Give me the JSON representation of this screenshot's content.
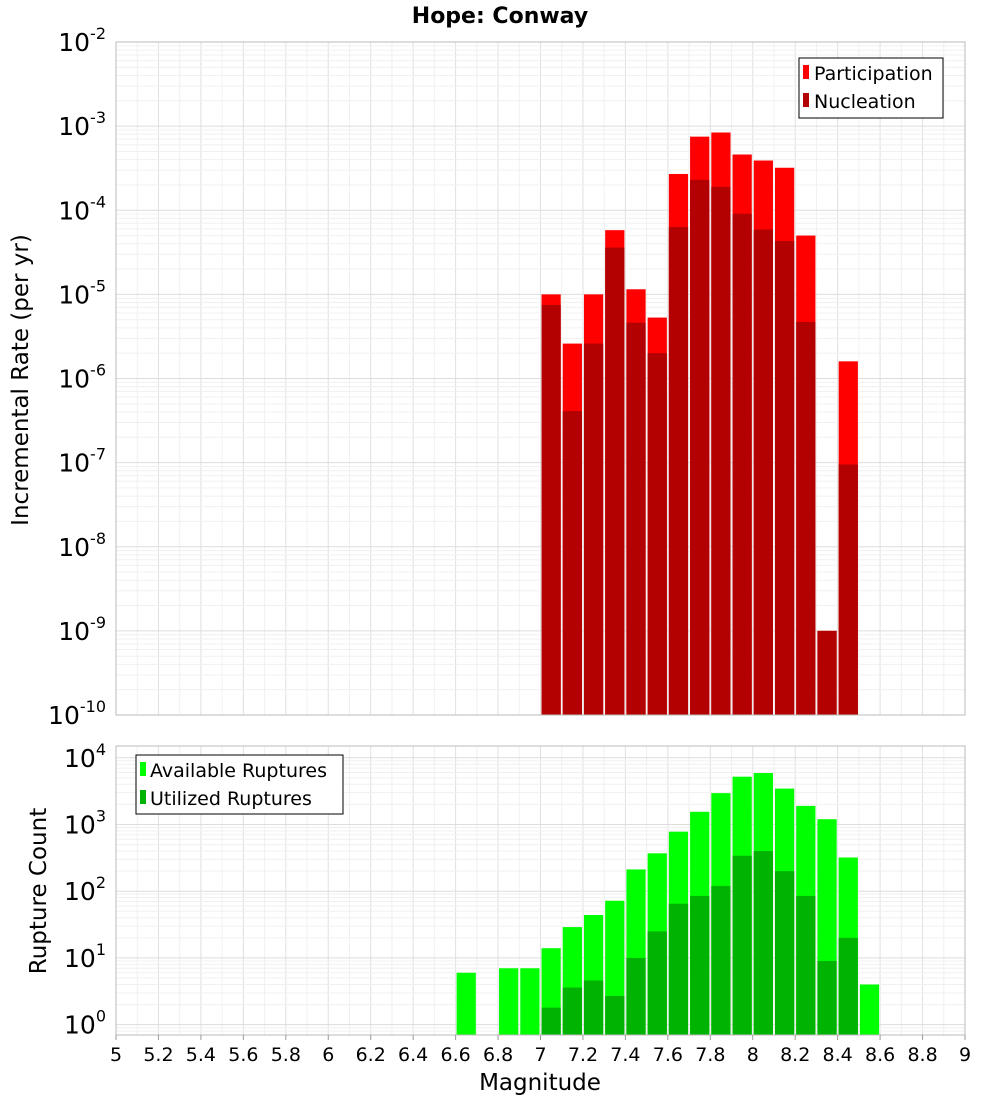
{
  "chart_data": [
    {
      "type": "bar",
      "title": "Hope: Conway",
      "xlabel": "Magnitude",
      "ylabel": "Incremental Rate (per yr)",
      "yscale": "log",
      "ylim": [
        1e-10,
        0.01
      ],
      "xlim": [
        5,
        9
      ],
      "bin_width": 0.1,
      "grid": true,
      "legend_position": "top-right",
      "x": [
        7.05,
        7.15,
        7.25,
        7.35,
        7.45,
        7.55,
        7.65,
        7.75,
        7.85,
        7.95,
        8.05,
        8.15,
        8.25,
        8.35,
        8.45
      ],
      "series": [
        {
          "name": "Participation",
          "color": "#ff0000",
          "values": [
            1e-05,
            2.6e-06,
            1e-05,
            5.8e-05,
            1.15e-05,
            5.3e-06,
            0.00027,
            0.00075,
            0.00084,
            0.00046,
            0.00039,
            0.00032,
            5e-05,
            1e-09,
            1.6e-06
          ]
        },
        {
          "name": "Nucleation",
          "color": "#b30000",
          "values": [
            7.5e-06,
            4.1e-07,
            2.6e-06,
            3.6e-05,
            4.6e-06,
            2e-06,
            6.3e-05,
            0.00023,
            0.00019,
            9.1e-05,
            5.9e-05,
            4.3e-05,
            4.7e-06,
            1e-09,
            9.5e-08
          ]
        }
      ]
    },
    {
      "type": "bar",
      "xlabel": "Magnitude",
      "ylabel": "Rupture Count",
      "yscale": "log",
      "ylim": [
        0.7,
        15000
      ],
      "xlim": [
        5,
        9
      ],
      "bin_width": 0.1,
      "grid": true,
      "legend_position": "top-left",
      "x": [
        6.65,
        6.85,
        6.95,
        7.05,
        7.15,
        7.25,
        7.35,
        7.45,
        7.55,
        7.65,
        7.75,
        7.85,
        7.95,
        8.05,
        8.15,
        8.25,
        8.35,
        8.45,
        8.55
      ],
      "series": [
        {
          "name": "Available Ruptures",
          "color": "#00ff00",
          "values": [
            6,
            7,
            7,
            14,
            29,
            44,
            72,
            212,
            370,
            780,
            1550,
            2950,
            5200,
            5900,
            3450,
            1900,
            1200,
            320,
            4
          ]
        },
        {
          "name": "Utilized Ruptures",
          "color": "#00b300",
          "values": [
            0,
            0,
            0,
            1.8,
            3.6,
            4.6,
            2.7,
            10,
            25,
            65,
            85,
            120,
            340,
            400,
            200,
            85,
            9,
            20,
            0
          ]
        }
      ],
      "x_ticks": [
        "5",
        "5.2",
        "5.4",
        "5.6",
        "5.8",
        "6",
        "6.2",
        "6.4",
        "6.6",
        "6.8",
        "7",
        "7.2",
        "7.4",
        "7.6",
        "7.8",
        "8",
        "8.2",
        "8.4",
        "8.6",
        "8.8",
        "9"
      ]
    }
  ],
  "top_y_ticks": [
    {
      "base": "10",
      "exp": "-2"
    },
    {
      "base": "10",
      "exp": "-3"
    },
    {
      "base": "10",
      "exp": "-4"
    },
    {
      "base": "10",
      "exp": "-5"
    },
    {
      "base": "10",
      "exp": "-6"
    },
    {
      "base": "10",
      "exp": "-7"
    },
    {
      "base": "10",
      "exp": "-8"
    },
    {
      "base": "10",
      "exp": "-9"
    },
    {
      "base": "10",
      "exp": "-10"
    }
  ],
  "bottom_y_ticks": [
    {
      "base": "10",
      "exp": "4"
    },
    {
      "base": "10",
      "exp": "3"
    },
    {
      "base": "10",
      "exp": "2"
    },
    {
      "base": "10",
      "exp": "1"
    },
    {
      "base": "10",
      "exp": "0"
    }
  ]
}
